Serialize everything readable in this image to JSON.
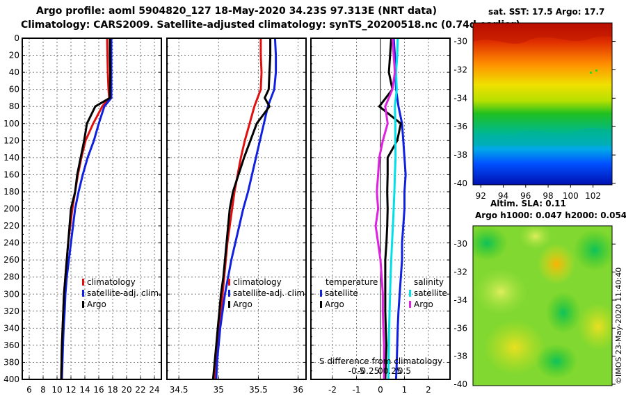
{
  "header": {
    "title_line1": "Argo profile: aoml 5904820_127 18-May-2020 34.23S 97.313E (NRT data)",
    "title_line2": "Climatology: CARS2009. Satellite-adjusted climatology: synTS_20200518.nc (0.74d earlier)"
  },
  "colors": {
    "climatology": "#e01010",
    "satellite": "#1020e0",
    "argo": "#000000",
    "salinity_satellite": "#00e0e8",
    "salinity_argo": "#e020e0"
  },
  "chart_data": [
    {
      "type": "line",
      "name": "temperature-profile",
      "xlim": [
        5,
        25
      ],
      "ylim": [
        400,
        0
      ],
      "yticks": [
        0,
        20,
        40,
        60,
        80,
        100,
        120,
        140,
        160,
        180,
        200,
        220,
        240,
        260,
        280,
        300,
        320,
        340,
        360,
        380,
        400
      ],
      "ytick_labels": [
        "0",
        "20",
        "40",
        "60",
        "80",
        "100",
        "120",
        "140",
        "160",
        "180",
        "200",
        "220",
        "240",
        "260",
        "280",
        "300",
        "320",
        "340",
        "360",
        "380",
        "400"
      ],
      "xticks": [
        6,
        8,
        10,
        12,
        14,
        16,
        18,
        20,
        22,
        24
      ],
      "xtick_labels": [
        "6",
        "8",
        "10",
        "12",
        "14",
        "16",
        "18",
        "20",
        "22",
        "24"
      ],
      "legend": [
        "climatology",
        "satellite-adj. clim.",
        "Argo"
      ],
      "series": [
        {
          "name": "climatology",
          "color_key": "climatology",
          "x": [
            17.2,
            17.25,
            17.3,
            17.4,
            17.5,
            16.5,
            15.2,
            14.1,
            13.5,
            13.0,
            12.6,
            12.2,
            11.9,
            11.6,
            11.4,
            11.2,
            11.0,
            10.9,
            10.8,
            10.7,
            10.6
          ],
          "y": [
            0,
            20,
            40,
            60,
            70,
            80,
            100,
            120,
            140,
            160,
            180,
            200,
            220,
            240,
            260,
            280,
            300,
            320,
            340,
            360,
            400
          ]
        },
        {
          "name": "satellite-adj. clim.",
          "color_key": "satellite",
          "x": [
            17.8,
            17.8,
            17.8,
            17.8,
            17.8,
            16.8,
            16.0,
            15.3,
            14.4,
            13.7,
            13.1,
            12.6,
            12.3,
            12.0,
            11.7,
            11.4,
            11.2,
            11.1,
            10.95,
            10.85,
            10.7
          ],
          "y": [
            0,
            20,
            40,
            60,
            70,
            80,
            100,
            120,
            140,
            160,
            180,
            200,
            220,
            240,
            260,
            280,
            300,
            320,
            340,
            360,
            400
          ]
        },
        {
          "name": "Argo",
          "color_key": "argo",
          "x": [
            17.6,
            17.6,
            17.65,
            17.6,
            17.6,
            15.5,
            14.3,
            13.9,
            13.4,
            12.9,
            12.6,
            12.0,
            11.8,
            11.6,
            11.4,
            11.2,
            11.0,
            10.9,
            10.8,
            10.7,
            10.6
          ],
          "y": [
            0,
            20,
            40,
            60,
            70,
            80,
            100,
            120,
            140,
            160,
            180,
            200,
            220,
            240,
            260,
            280,
            300,
            320,
            340,
            360,
            400
          ]
        }
      ]
    },
    {
      "type": "line",
      "name": "salinity-profile",
      "xlim": [
        34.35,
        36.1
      ],
      "ylim": [
        400,
        0
      ],
      "xticks": [
        34.5,
        35,
        35.5,
        36
      ],
      "xtick_labels": [
        "34.5",
        "35",
        "35.5",
        "36"
      ],
      "legend": [
        "climatology",
        "satellite-adj. clim.",
        "Argo"
      ],
      "series": [
        {
          "name": "climatology",
          "color_key": "climatology",
          "x": [
            35.53,
            35.53,
            35.54,
            35.53,
            35.49,
            35.45,
            35.39,
            35.33,
            35.28,
            35.24,
            35.2,
            35.17,
            35.14,
            35.11,
            35.09,
            35.07,
            35.05,
            35.03,
            35.01,
            34.99,
            34.97,
            34.95
          ],
          "y": [
            0,
            20,
            40,
            60,
            70,
            80,
            100,
            120,
            140,
            160,
            180,
            200,
            220,
            240,
            260,
            280,
            300,
            320,
            340,
            360,
            380,
            400
          ]
        },
        {
          "name": "satellite-adj. clim.",
          "color_key": "satellite",
          "x": [
            35.71,
            35.72,
            35.72,
            35.7,
            35.66,
            35.62,
            35.57,
            35.52,
            35.47,
            35.42,
            35.37,
            35.31,
            35.26,
            35.21,
            35.16,
            35.12,
            35.08,
            35.05,
            35.02,
            35.0,
            34.98,
            34.97
          ],
          "y": [
            0,
            20,
            40,
            60,
            70,
            80,
            100,
            120,
            140,
            160,
            180,
            200,
            220,
            240,
            260,
            280,
            300,
            320,
            340,
            360,
            380,
            400
          ]
        },
        {
          "name": "Argo",
          "color_key": "argo",
          "x": [
            35.65,
            35.65,
            35.64,
            35.63,
            35.58,
            35.64,
            35.48,
            35.4,
            35.32,
            35.25,
            35.18,
            35.14,
            35.12,
            35.1,
            35.08,
            35.06,
            35.03,
            35.01,
            34.99,
            34.97,
            34.95,
            34.93
          ],
          "y": [
            0,
            20,
            40,
            60,
            70,
            80,
            100,
            120,
            140,
            160,
            180,
            200,
            220,
            240,
            260,
            280,
            300,
            320,
            340,
            360,
            380,
            400
          ]
        }
      ]
    },
    {
      "type": "line",
      "name": "difference-from-climatology",
      "xlim": [
        -2.9,
        2.9
      ],
      "ylim": [
        400,
        0
      ],
      "xticks": [
        -2,
        -1,
        0,
        1,
        2
      ],
      "xtick_labels": [
        "-2",
        "-1",
        "0",
        "1",
        "2"
      ],
      "top_ticks": [
        -0.5,
        -0.25,
        0,
        0.25,
        0.5
      ],
      "top_tick_labels": [
        "-0.5",
        "-0.25",
        "0",
        "0.25",
        "0.5"
      ],
      "axis_label": "S difference from climatology",
      "legend_temperature_title": "temperature",
      "legend_salinity_title": "salinity",
      "legend_labels": {
        "satellite": "satellite",
        "argo": "Argo"
      },
      "series": [
        {
          "name": "temperature satellite",
          "color_key": "satellite",
          "x": [
            0.55,
            0.6,
            0.62,
            0.65,
            0.75,
            0.9,
            0.95,
            1.0,
            1.05,
            1.0,
            1.0,
            0.95,
            0.9,
            0.9,
            0.85,
            0.8,
            0.75,
            0.72,
            0.7,
            0.68,
            0.65
          ],
          "y": [
            0,
            20,
            40,
            60,
            80,
            100,
            120,
            140,
            160,
            180,
            200,
            220,
            240,
            260,
            280,
            300,
            320,
            340,
            360,
            380,
            400
          ]
        },
        {
          "name": "temperature Argo",
          "color_key": "argo",
          "x": [
            0.45,
            0.4,
            0.35,
            0.5,
            -0.05,
            0.85,
            0.7,
            0.3,
            0.3,
            0.28,
            0.3,
            0.28,
            0.25,
            0.2,
            0.2,
            0.2,
            0.2,
            0.22,
            0.25,
            0.22,
            0.2
          ],
          "y": [
            0,
            20,
            40,
            60,
            80,
            100,
            120,
            140,
            160,
            180,
            200,
            220,
            240,
            260,
            280,
            300,
            320,
            340,
            360,
            380,
            400
          ]
        },
        {
          "name": "salinity satellite",
          "color_key": "salinity_satellite",
          "x": [
            0.72,
            0.7,
            0.65,
            0.68,
            0.6,
            0.62,
            0.62,
            0.63,
            0.6,
            0.58,
            0.55,
            0.52,
            0.48,
            0.45,
            0.42,
            0.4,
            0.38,
            0.36,
            0.35,
            0.34,
            0.33
          ],
          "y": [
            0,
            20,
            40,
            60,
            80,
            100,
            120,
            140,
            160,
            180,
            200,
            220,
            240,
            260,
            280,
            300,
            320,
            340,
            360,
            380,
            400
          ]
        },
        {
          "name": "salinity Argo",
          "color_key": "salinity_argo",
          "x": [
            0.5,
            0.55,
            0.6,
            0.5,
            0.2,
            0.3,
            0.1,
            -0.05,
            -0.1,
            -0.15,
            -0.1,
            -0.2,
            -0.1,
            0.0,
            0.05,
            0.1,
            0.1,
            0.12,
            0.15,
            0.15,
            0.15
          ],
          "y": [
            0,
            20,
            40,
            60,
            80,
            100,
            120,
            140,
            160,
            180,
            200,
            220,
            240,
            260,
            280,
            300,
            320,
            340,
            360,
            380,
            400
          ]
        }
      ]
    },
    {
      "type": "heatmap",
      "name": "sst-map",
      "title": "sat. SST: 17.5 Argo: 17.7",
      "xlim": [
        91.3,
        103.7
      ],
      "ylim": [
        -40.1,
        -28.7
      ],
      "xticks": [
        92,
        94,
        96,
        98,
        100,
        102
      ],
      "xtick_labels": [
        "92",
        "94",
        "96",
        "98",
        "100",
        "102"
      ],
      "yticks": [
        -30,
        -32,
        -34,
        -36,
        -38,
        -40
      ],
      "ytick_labels": [
        "-30",
        "-32",
        "-34",
        "-36",
        "-38",
        "-40"
      ]
    },
    {
      "type": "heatmap",
      "name": "sla-map",
      "title_line1": "Altim. SLA: 0.11",
      "title_line2": "Argo h1000: 0.047 h2000: 0.054",
      "ylim": [
        -40.1,
        -28.7
      ],
      "yticks": [
        -30,
        -32,
        -34,
        -36,
        -38,
        -40
      ],
      "ytick_labels": [
        "-30",
        "-32",
        "-34",
        "-36",
        "-38",
        "-40"
      ]
    }
  ],
  "watermark": "©IMOS 23-May-2020 11:40:40"
}
